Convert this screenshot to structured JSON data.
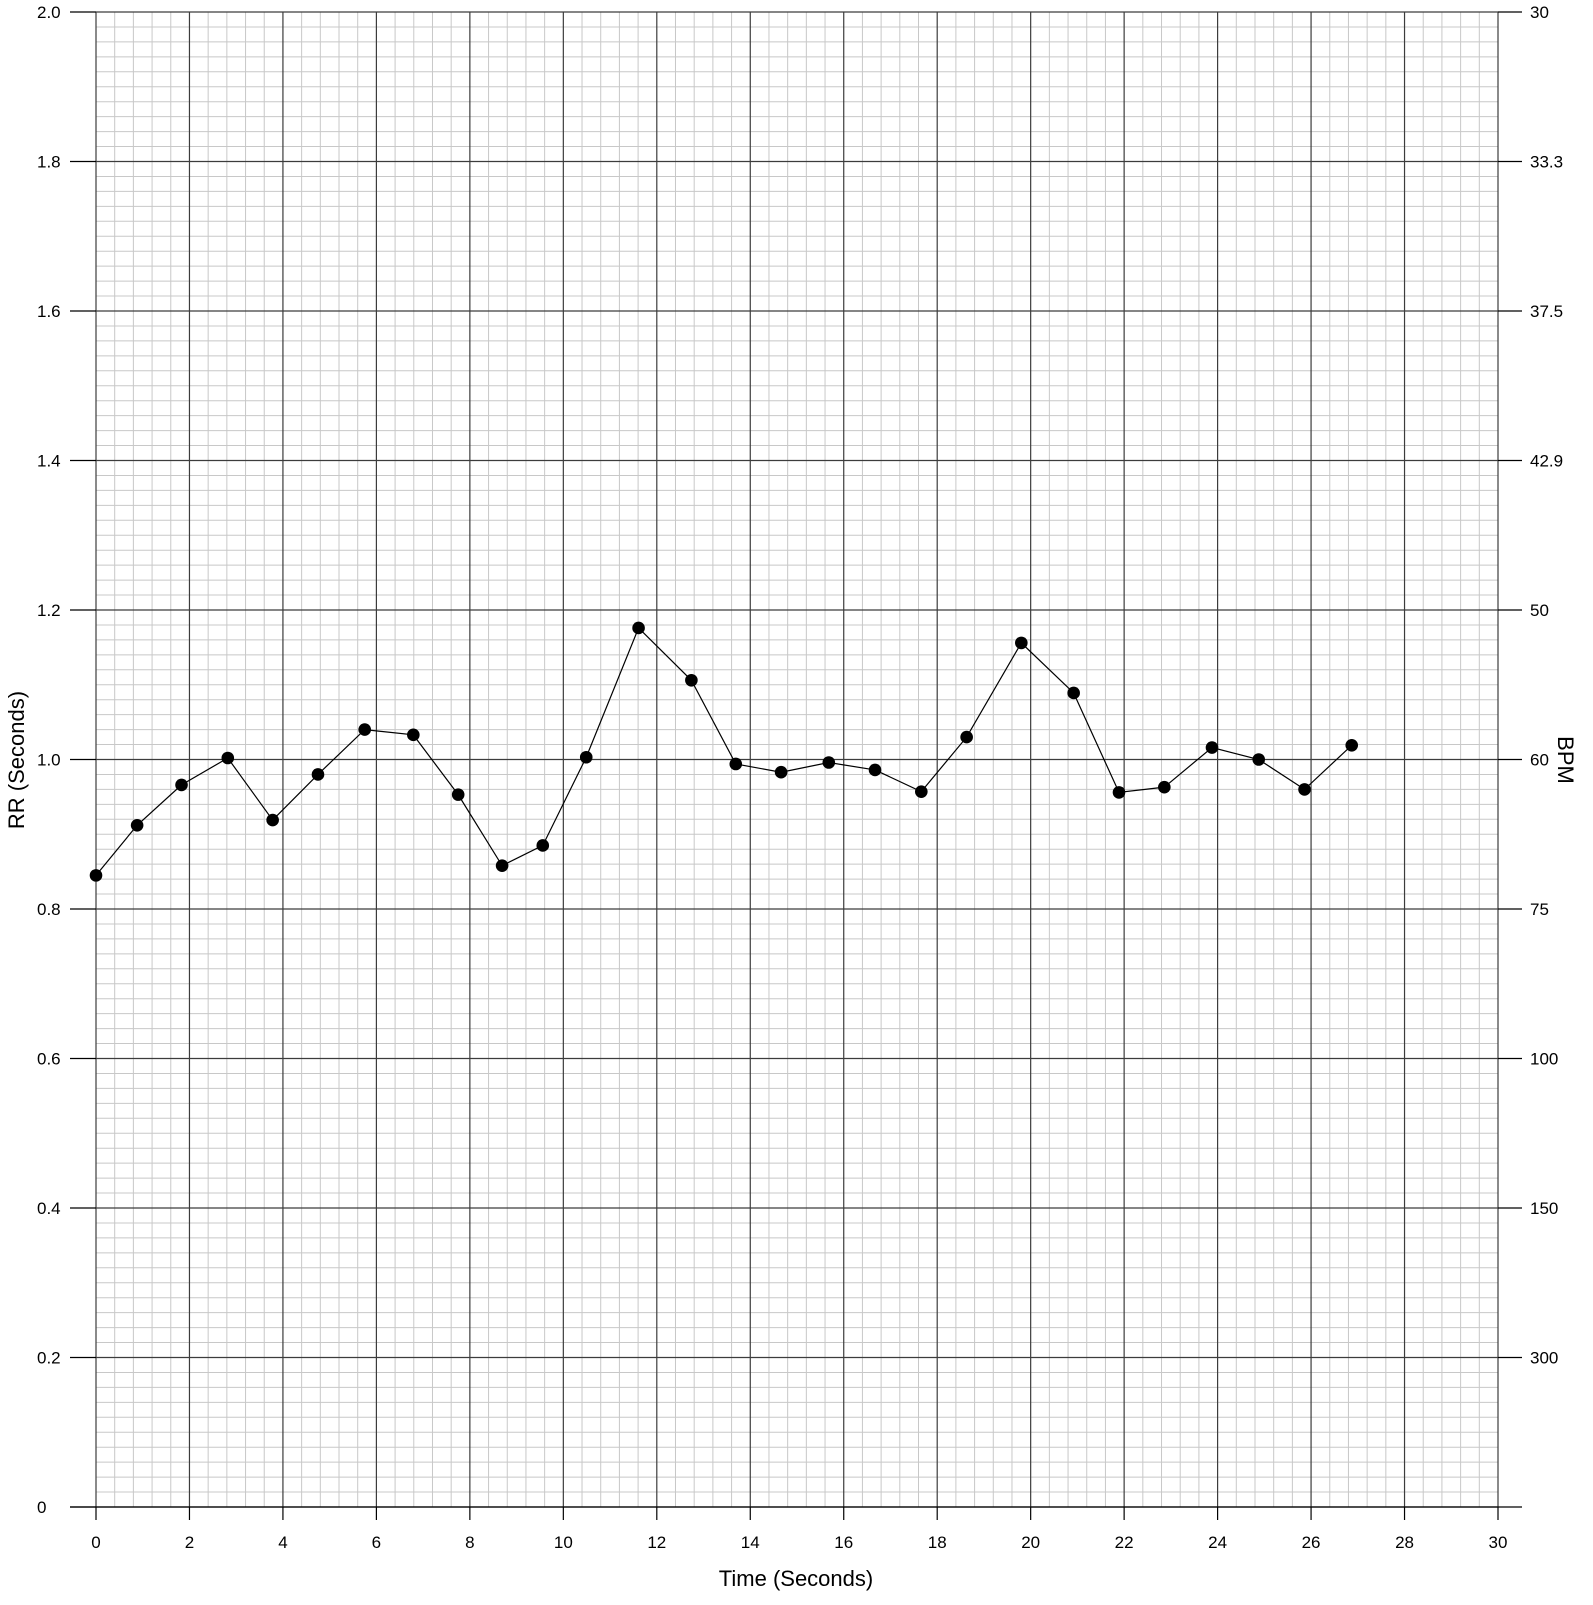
{
  "chart_data": {
    "type": "line",
    "xlabel": "Time (Seconds)",
    "ylabel": "RR (Seconds)",
    "y2label": "BPM",
    "xlim": [
      0,
      30
    ],
    "ylim": [
      0,
      2.0
    ],
    "x_ticks": [
      "0",
      "2",
      "4",
      "6",
      "8",
      "10",
      "12",
      "14",
      "16",
      "18",
      "20",
      "22",
      "24",
      "26",
      "28",
      "30"
    ],
    "y_ticks": [
      "0",
      "0.2",
      "0.4",
      "0.6",
      "0.8",
      "1.0",
      "1.2",
      "1.4",
      "1.6",
      "1.8",
      "2.0"
    ],
    "y2_ticks": [
      {
        "rr": 2.0,
        "label": "30"
      },
      {
        "rr": 1.8,
        "label": "33.3"
      },
      {
        "rr": 1.6,
        "label": "37.5"
      },
      {
        "rr": 1.4,
        "label": "42.9"
      },
      {
        "rr": 1.2,
        "label": "50"
      },
      {
        "rr": 1.0,
        "label": "60"
      },
      {
        "rr": 0.8,
        "label": "75"
      },
      {
        "rr": 0.6,
        "label": "100"
      },
      {
        "rr": 0.4,
        "label": "150"
      },
      {
        "rr": 0.2,
        "label": "300"
      }
    ],
    "grid": true,
    "series": [
      {
        "x": [
          0.0,
          0.88,
          1.83,
          2.82,
          3.78,
          4.75,
          5.75,
          6.79,
          7.75,
          8.69,
          9.56,
          10.49,
          11.61,
          12.74,
          13.69,
          14.66,
          15.68,
          16.67,
          17.66,
          18.63,
          19.8,
          20.92,
          21.89,
          22.86,
          23.88,
          24.88,
          25.86,
          26.87
        ],
        "y": [
          0.845,
          0.912,
          0.966,
          1.002,
          0.919,
          0.98,
          1.04,
          1.033,
          0.953,
          0.858,
          0.885,
          1.003,
          1.176,
          1.106,
          0.994,
          0.983,
          0.996,
          0.986,
          0.957,
          1.03,
          1.156,
          1.089,
          0.956,
          0.963,
          1.016,
          1.0,
          0.96,
          1.019
        ]
      }
    ],
    "colors": {
      "line": "#000000",
      "marker": "#000000",
      "minor_grid": "#c8c8c8",
      "major_grid": "#3c3c3c"
    }
  }
}
